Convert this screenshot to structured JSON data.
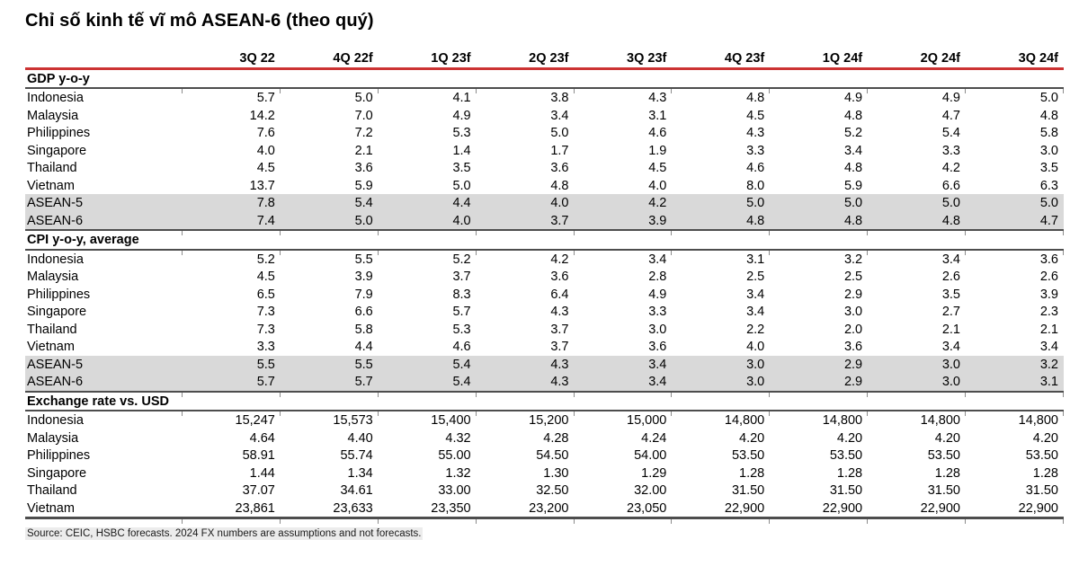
{
  "title": "Chỉ số kinh tế vĩ mô ASEAN-6 (theo quý)",
  "colors": {
    "accent_red": "#cc3333",
    "highlight_row": "#d9d9d9",
    "rule_dark": "#4d4d4d"
  },
  "table": {
    "columns": [
      "",
      "3Q 22",
      "4Q 22f",
      "1Q 23f",
      "2Q 23f",
      "3Q 23f",
      "4Q 23f",
      "1Q 24f",
      "2Q 24f",
      "3Q 24f"
    ],
    "sections": [
      {
        "label": "GDP y-o-y",
        "rows": [
          {
            "label": "Indonesia",
            "highlight": false,
            "values": [
              "5.7",
              "5.0",
              "4.1",
              "3.8",
              "4.3",
              "4.8",
              "4.9",
              "4.9",
              "5.0"
            ]
          },
          {
            "label": "Malaysia",
            "highlight": false,
            "values": [
              "14.2",
              "7.0",
              "4.9",
              "3.4",
              "3.1",
              "4.5",
              "4.8",
              "4.7",
              "4.8"
            ]
          },
          {
            "label": "Philippines",
            "highlight": false,
            "values": [
              "7.6",
              "7.2",
              "5.3",
              "5.0",
              "4.6",
              "4.3",
              "5.2",
              "5.4",
              "5.8"
            ]
          },
          {
            "label": "Singapore",
            "highlight": false,
            "values": [
              "4.0",
              "2.1",
              "1.4",
              "1.7",
              "1.9",
              "3.3",
              "3.4",
              "3.3",
              "3.0"
            ]
          },
          {
            "label": "Thailand",
            "highlight": false,
            "values": [
              "4.5",
              "3.6",
              "3.5",
              "3.6",
              "4.5",
              "4.6",
              "4.8",
              "4.2",
              "3.5"
            ]
          },
          {
            "label": "Vietnam",
            "highlight": false,
            "values": [
              "13.7",
              "5.9",
              "5.0",
              "4.8",
              "4.0",
              "8.0",
              "5.9",
              "6.6",
              "6.3"
            ]
          },
          {
            "label": "ASEAN-5",
            "highlight": true,
            "values": [
              "7.8",
              "5.4",
              "4.4",
              "4.0",
              "4.2",
              "5.0",
              "5.0",
              "5.0",
              "5.0"
            ]
          },
          {
            "label": "ASEAN-6",
            "highlight": true,
            "values": [
              "7.4",
              "5.0",
              "4.0",
              "3.7",
              "3.9",
              "4.8",
              "4.8",
              "4.8",
              "4.7"
            ]
          }
        ]
      },
      {
        "label": "CPI y-o-y, average",
        "rows": [
          {
            "label": "Indonesia",
            "highlight": false,
            "values": [
              "5.2",
              "5.5",
              "5.2",
              "4.2",
              "3.4",
              "3.1",
              "3.2",
              "3.4",
              "3.6"
            ]
          },
          {
            "label": "Malaysia",
            "highlight": false,
            "values": [
              "4.5",
              "3.9",
              "3.7",
              "3.6",
              "2.8",
              "2.5",
              "2.5",
              "2.6",
              "2.6"
            ]
          },
          {
            "label": "Philippines",
            "highlight": false,
            "values": [
              "6.5",
              "7.9",
              "8.3",
              "6.4",
              "4.9",
              "3.4",
              "2.9",
              "3.5",
              "3.9"
            ]
          },
          {
            "label": "Singapore",
            "highlight": false,
            "values": [
              "7.3",
              "6.6",
              "5.7",
              "4.3",
              "3.3",
              "3.4",
              "3.0",
              "2.7",
              "2.3"
            ]
          },
          {
            "label": "Thailand",
            "highlight": false,
            "values": [
              "7.3",
              "5.8",
              "5.3",
              "3.7",
              "3.0",
              "2.2",
              "2.0",
              "2.1",
              "2.1"
            ]
          },
          {
            "label": "Vietnam",
            "highlight": false,
            "values": [
              "3.3",
              "4.4",
              "4.6",
              "3.7",
              "3.6",
              "4.0",
              "3.6",
              "3.4",
              "3.4"
            ]
          },
          {
            "label": "ASEAN-5",
            "highlight": true,
            "values": [
              "5.5",
              "5.5",
              "5.4",
              "4.3",
              "3.4",
              "3.0",
              "2.9",
              "3.0",
              "3.2"
            ]
          },
          {
            "label": "ASEAN-6",
            "highlight": true,
            "values": [
              "5.7",
              "5.7",
              "5.4",
              "4.3",
              "3.4",
              "3.0",
              "2.9",
              "3.0",
              "3.1"
            ]
          }
        ]
      },
      {
        "label": "Exchange rate vs. USD",
        "rows": [
          {
            "label": "Indonesia",
            "highlight": false,
            "values": [
              "15,247",
              "15,573",
              "15,400",
              "15,200",
              "15,000",
              "14,800",
              "14,800",
              "14,800",
              "14,800"
            ]
          },
          {
            "label": "Malaysia",
            "highlight": false,
            "values": [
              "4.64",
              "4.40",
              "4.32",
              "4.28",
              "4.24",
              "4.20",
              "4.20",
              "4.20",
              "4.20"
            ]
          },
          {
            "label": "Philippines",
            "highlight": false,
            "values": [
              "58.91",
              "55.74",
              "55.00",
              "54.50",
              "54.00",
              "53.50",
              "53.50",
              "53.50",
              "53.50"
            ]
          },
          {
            "label": "Singapore",
            "highlight": false,
            "values": [
              "1.44",
              "1.34",
              "1.32",
              "1.30",
              "1.29",
              "1.28",
              "1.28",
              "1.28",
              "1.28"
            ]
          },
          {
            "label": "Thailand",
            "highlight": false,
            "values": [
              "37.07",
              "34.61",
              "33.00",
              "32.50",
              "32.00",
              "31.50",
              "31.50",
              "31.50",
              "31.50"
            ]
          },
          {
            "label": "Vietnam",
            "highlight": false,
            "values": [
              "23,861",
              "23,633",
              "23,350",
              "23,200",
              "23,050",
              "22,900",
              "22,900",
              "22,900",
              "22,900"
            ]
          }
        ]
      }
    ]
  },
  "source": "Source: CEIC, HSBC forecasts. 2024 FX numbers are assumptions and not forecasts."
}
